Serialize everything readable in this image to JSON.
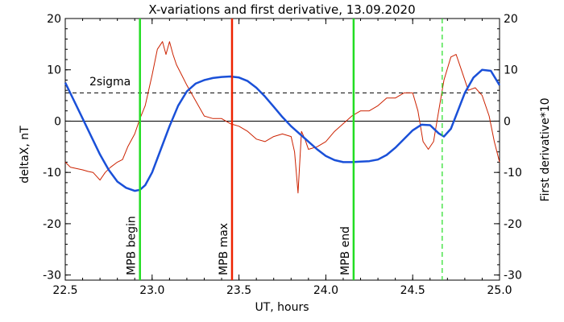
{
  "chart_data": {
    "type": "line",
    "title": "X-variations and first derivative, 13.09.2020",
    "xlabel": "UT, hours",
    "ylabel_left": "deltaX, nT",
    "ylabel_right": "First derivative*10",
    "xlim": [
      22.5,
      25.0
    ],
    "ylim": [
      -31,
      20
    ],
    "xticks": [
      22.5,
      23.0,
      23.5,
      24.0,
      24.5,
      25.0
    ],
    "xtick_labels": [
      "22.5",
      "23.0",
      "23.5",
      "24.0",
      "24.5",
      "25.0"
    ],
    "yticks": [
      -30,
      -20,
      -10,
      0,
      10,
      20
    ],
    "ytick_labels": [
      "-30",
      "-20",
      "-10",
      "0",
      "10",
      "20"
    ],
    "zero_line": 0,
    "sigma_line": {
      "value": 5.5,
      "label": "2sigma"
    },
    "grid": false,
    "colors": {
      "deltaX": "#1a50d8",
      "derivative": "#cc2200",
      "mpb_begin": "#22dd22",
      "mpb_max": "#ee2200",
      "mpb_end": "#22dd22",
      "dashed_marker": "#22dd22",
      "left_axis_label": "#1a50d8",
      "right_axis_label": "#cc2200",
      "marker_label_green": "#22dd22",
      "marker_label_red": "#ee2200"
    },
    "vertical_markers": [
      {
        "name": "begin",
        "x": 22.93,
        "label": "MPB begin",
        "style": "solid",
        "color_key": "mpb_begin"
      },
      {
        "name": "max",
        "x": 23.46,
        "label": "MPB max",
        "style": "solid",
        "color_key": "mpb_max"
      },
      {
        "name": "end",
        "x": 24.16,
        "label": "MPB end",
        "style": "solid",
        "color_key": "mpb_end"
      },
      {
        "name": "dashed",
        "x": 24.67,
        "label": "",
        "style": "dashed",
        "color_key": "dashed_marker"
      }
    ],
    "series": [
      {
        "name": "deltaX",
        "color_key": "deltaX",
        "x": [
          22.5,
          22.55,
          22.6,
          22.65,
          22.7,
          22.75,
          22.8,
          22.85,
          22.9,
          22.93,
          22.96,
          23.0,
          23.05,
          23.1,
          23.15,
          23.2,
          23.25,
          23.3,
          23.35,
          23.4,
          23.45,
          23.5,
          23.55,
          23.6,
          23.65,
          23.7,
          23.75,
          23.8,
          23.85,
          23.9,
          23.95,
          24.0,
          24.05,
          24.1,
          24.15,
          24.2,
          24.25,
          24.3,
          24.35,
          24.4,
          24.45,
          24.5,
          24.55,
          24.6,
          24.65,
          24.68,
          24.72,
          24.76,
          24.8,
          24.85,
          24.9,
          24.95,
          25.0
        ],
        "y": [
          7.5,
          4.0,
          0.5,
          -3.0,
          -6.5,
          -9.5,
          -11.8,
          -13.0,
          -13.6,
          -13.4,
          -12.5,
          -10.0,
          -5.5,
          -1.0,
          3.0,
          5.8,
          7.3,
          8.0,
          8.4,
          8.6,
          8.7,
          8.5,
          7.8,
          6.5,
          4.8,
          2.8,
          0.8,
          -1.0,
          -2.5,
          -4.0,
          -5.5,
          -6.8,
          -7.6,
          -8.0,
          -8.0,
          -7.9,
          -7.8,
          -7.5,
          -6.6,
          -5.2,
          -3.5,
          -1.8,
          -0.7,
          -0.8,
          -2.4,
          -3.0,
          -1.5,
          2.0,
          5.5,
          8.5,
          10.0,
          9.8,
          7.0
        ]
      },
      {
        "name": "First derivative*10",
        "color_key": "derivative",
        "x": [
          22.5,
          22.53,
          22.56,
          22.6,
          22.63,
          22.66,
          22.7,
          22.73,
          22.76,
          22.8,
          22.83,
          22.86,
          22.9,
          22.93,
          22.96,
          23.0,
          23.03,
          23.06,
          23.08,
          23.1,
          23.12,
          23.14,
          23.17,
          23.2,
          23.25,
          23.3,
          23.35,
          23.4,
          23.45,
          23.5,
          23.55,
          23.6,
          23.65,
          23.7,
          23.75,
          23.8,
          23.82,
          23.84,
          23.86,
          23.88,
          23.9,
          23.95,
          24.0,
          24.05,
          24.1,
          24.15,
          24.2,
          24.25,
          24.3,
          24.35,
          24.4,
          24.45,
          24.5,
          24.53,
          24.56,
          24.59,
          24.62,
          24.65,
          24.68,
          24.72,
          24.75,
          24.78,
          24.82,
          24.86,
          24.9,
          24.94,
          24.97,
          25.0
        ],
        "y": [
          -8.0,
          -9.0,
          -9.2,
          -9.5,
          -9.8,
          -10.0,
          -11.5,
          -10.0,
          -9.0,
          -8.0,
          -7.5,
          -5.0,
          -2.5,
          0.5,
          3.0,
          9.0,
          14.0,
          15.5,
          13.0,
          15.5,
          13.0,
          11.0,
          9.0,
          7.0,
          4.0,
          1.0,
          0.5,
          0.5,
          -0.5,
          -1.0,
          -2.0,
          -3.5,
          -4.0,
          -3.0,
          -2.5,
          -3.0,
          -6.0,
          -14.0,
          -2.0,
          -3.5,
          -5.5,
          -5.0,
          -4.0,
          -2.0,
          -0.5,
          1.0,
          2.0,
          2.0,
          3.0,
          4.5,
          4.5,
          5.5,
          5.5,
          2.0,
          -4.0,
          -5.5,
          -4.0,
          2.0,
          8.0,
          12.5,
          13.0,
          10.0,
          6.0,
          6.5,
          5.0,
          1.0,
          -4.0,
          -8.0
        ]
      }
    ]
  }
}
